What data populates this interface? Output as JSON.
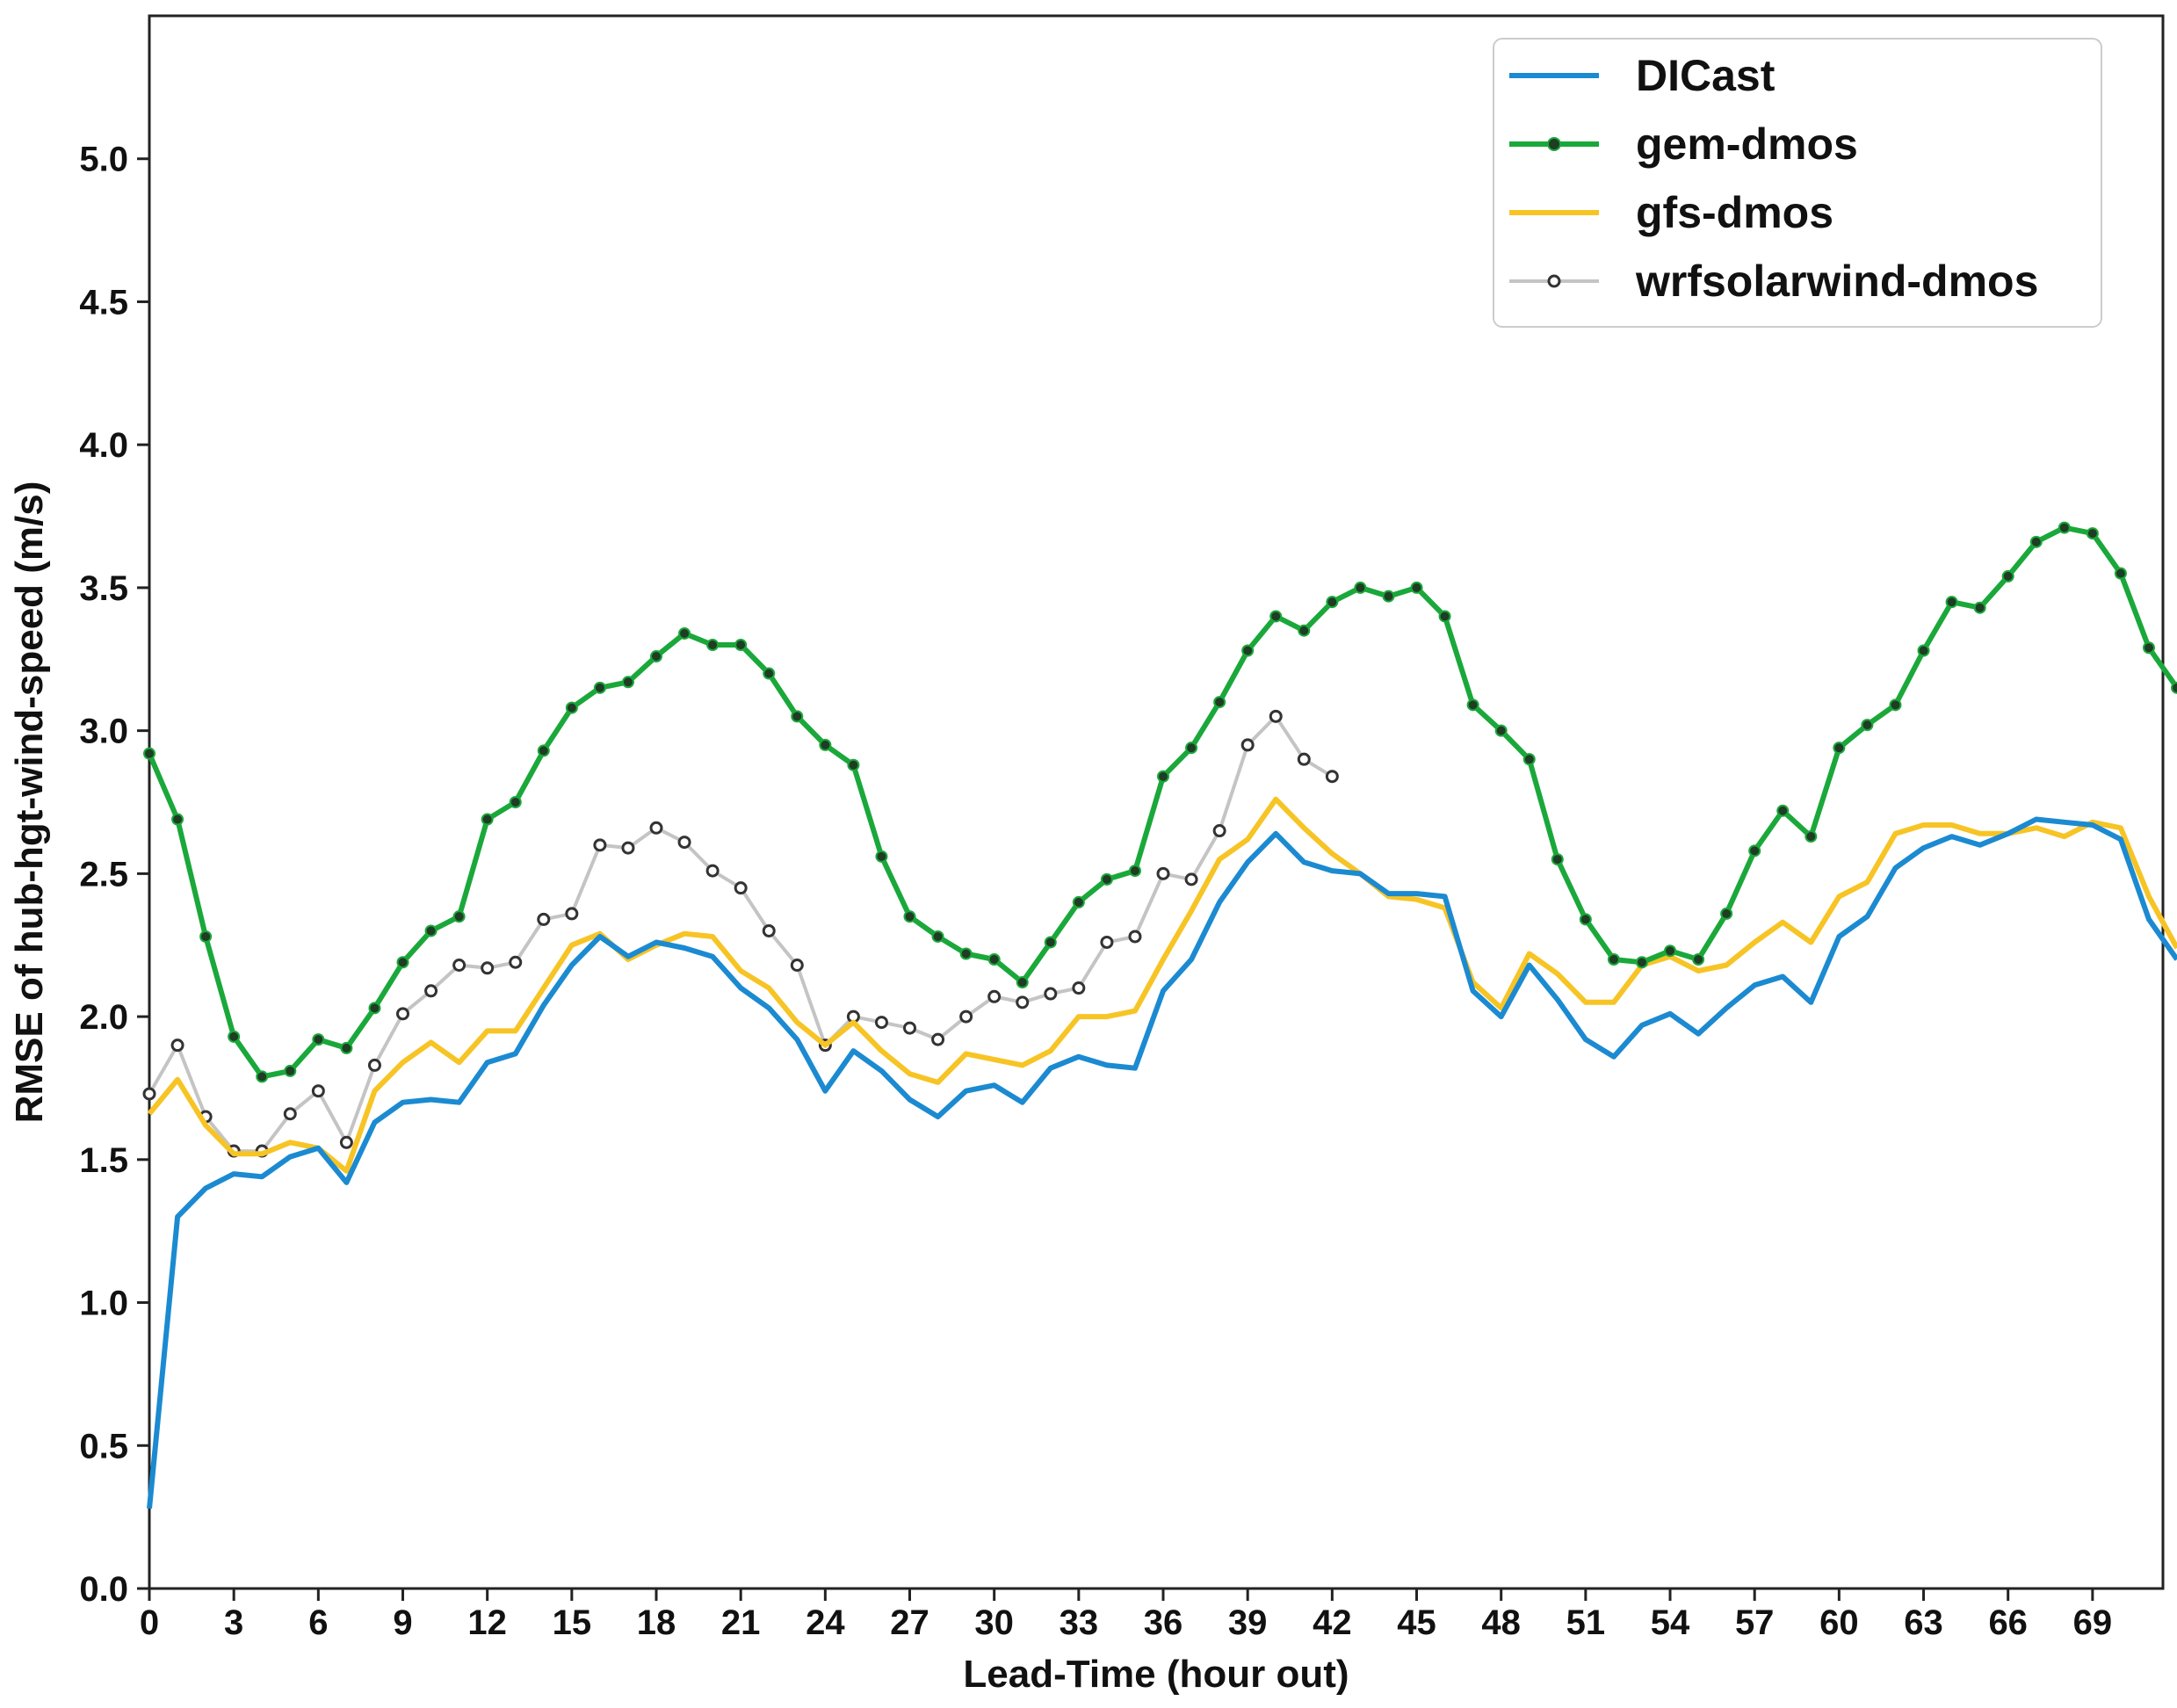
{
  "chart_data": {
    "type": "line",
    "title": "",
    "xlabel": "Lead-Time (hour out)",
    "ylabel": "RMSE of hub-hgt-wind-speed (m/s)",
    "xlim": [
      0,
      71.5
    ],
    "ylim": [
      0,
      5.5
    ],
    "x_ticks": [
      "0",
      "3",
      "6",
      "9",
      "12",
      "15",
      "18",
      "21",
      "24",
      "27",
      "30",
      "33",
      "36",
      "39",
      "42",
      "45",
      "48",
      "51",
      "54",
      "57",
      "60",
      "63",
      "66",
      "69"
    ],
    "y_ticks": [
      "0.0",
      "0.5",
      "1.0",
      "1.5",
      "2.0",
      "2.5",
      "3.0",
      "3.5",
      "4.0",
      "4.5",
      "5.0"
    ],
    "grid": false,
    "legend_position": "top-right",
    "series": [
      {
        "name": "DICast",
        "color": "#1b8ad1",
        "marker": "none",
        "values": [
          0.28,
          1.3,
          1.4,
          1.45,
          1.44,
          1.51,
          1.54,
          1.42,
          1.63,
          1.7,
          1.71,
          1.7,
          1.84,
          1.87,
          2.04,
          2.18,
          2.28,
          2.21,
          2.26,
          2.24,
          2.21,
          2.1,
          2.03,
          1.92,
          1.74,
          1.88,
          1.81,
          1.71,
          1.65,
          1.74,
          1.76,
          1.7,
          1.82,
          1.86,
          1.83,
          1.82,
          2.09,
          2.2,
          2.4,
          2.54,
          2.64,
          2.54,
          2.51,
          2.5,
          2.43,
          2.43,
          2.42,
          2.09,
          2.0,
          2.18,
          2.06,
          1.92,
          1.86,
          1.97,
          2.01,
          1.94,
          2.03,
          2.11,
          2.14,
          2.05,
          2.28,
          2.35,
          2.52,
          2.59,
          2.63,
          2.6,
          2.64,
          2.69,
          2.68,
          2.67,
          2.62,
          2.34,
          2.2
        ]
      },
      {
        "name": "gem-dmos",
        "color": "#1aa83a",
        "marker": "filled-circle",
        "values": [
          2.92,
          2.69,
          2.28,
          1.93,
          1.79,
          1.81,
          1.92,
          1.89,
          2.03,
          2.19,
          2.3,
          2.35,
          2.69,
          2.75,
          2.93,
          3.08,
          3.15,
          3.17,
          3.26,
          3.34,
          3.3,
          3.3,
          3.2,
          3.05,
          2.95,
          2.88,
          2.56,
          2.35,
          2.28,
          2.22,
          2.2,
          2.12,
          2.26,
          2.4,
          2.48,
          2.51,
          2.84,
          2.94,
          3.1,
          3.28,
          3.4,
          3.35,
          3.45,
          3.5,
          3.47,
          3.5,
          3.4,
          3.09,
          3.0,
          2.9,
          2.55,
          2.34,
          2.2,
          2.19,
          2.23,
          2.2,
          2.36,
          2.58,
          2.72,
          2.63,
          2.94,
          3.02,
          3.09,
          3.28,
          3.45,
          3.43,
          3.54,
          3.66,
          3.71,
          3.69,
          3.55,
          3.29,
          3.15
        ]
      },
      {
        "name": "gfs-dmos",
        "color": "#f7c425",
        "marker": "none",
        "values": [
          1.66,
          1.78,
          1.62,
          1.52,
          1.52,
          1.56,
          1.54,
          1.46,
          1.74,
          1.84,
          1.91,
          1.84,
          1.95,
          1.95,
          2.1,
          2.25,
          2.29,
          2.2,
          2.25,
          2.29,
          2.28,
          2.16,
          2.1,
          1.98,
          1.9,
          1.98,
          1.88,
          1.8,
          1.77,
          1.87,
          1.85,
          1.83,
          1.88,
          2.0,
          2.0,
          2.02,
          2.2,
          2.37,
          2.55,
          2.62,
          2.76,
          2.66,
          2.57,
          2.5,
          2.42,
          2.41,
          2.38,
          2.12,
          2.03,
          2.22,
          2.15,
          2.05,
          2.05,
          2.18,
          2.21,
          2.16,
          2.18,
          2.26,
          2.33,
          2.26,
          2.42,
          2.47,
          2.64,
          2.67,
          2.67,
          2.64,
          2.64,
          2.66,
          2.63,
          2.68,
          2.66,
          2.42,
          2.24
        ]
      },
      {
        "name": "wrfsolarwind-dmos",
        "color": "#c4c4c4",
        "marker": "hollow-circle",
        "values": [
          1.73,
          1.9,
          1.65,
          1.53,
          1.53,
          1.66,
          1.74,
          1.56,
          1.83,
          2.01,
          2.09,
          2.18,
          2.17,
          2.19,
          2.34,
          2.36,
          2.6,
          2.59,
          2.66,
          2.61,
          2.51,
          2.45,
          2.3,
          2.18,
          1.9,
          2.0,
          1.98,
          1.96,
          1.92,
          2.0,
          2.07,
          2.05,
          2.08,
          2.1,
          2.26,
          2.28,
          2.5,
          2.48,
          2.65,
          2.95,
          3.05,
          2.9,
          2.84
        ]
      }
    ]
  }
}
